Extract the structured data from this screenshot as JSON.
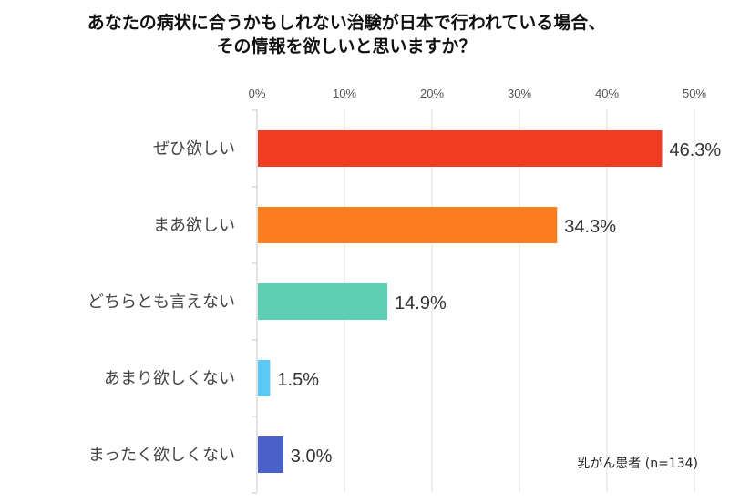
{
  "chart_data": {
    "type": "bar",
    "orientation": "horizontal",
    "title_lines": [
      "あなたの病状に合うかもしれない治験が日本で行われている場合、",
      "その情報を欲しいと思いますか？"
    ],
    "categories": [
      "ぜひ欲しい",
      "まあ欲しい",
      "どちらとも言えない",
      "あまり欲しくない",
      "まったく欲しくない"
    ],
    "values": [
      46.3,
      34.3,
      14.9,
      1.5,
      3.0
    ],
    "value_labels": [
      "46.3%",
      "34.3%",
      "14.9%",
      "1.5%",
      "3.0%"
    ],
    "colors": [
      "#f03c23",
      "#fd7e1f",
      "#5ecfb5",
      "#5bc8f5",
      "#4961c8"
    ],
    "xlim": [
      0,
      50
    ],
    "x_ticks": [
      "0%",
      "10%",
      "20%",
      "30%",
      "40%",
      "50%"
    ],
    "grid": true,
    "annotation": "乳がん患者 (n=134)"
  }
}
